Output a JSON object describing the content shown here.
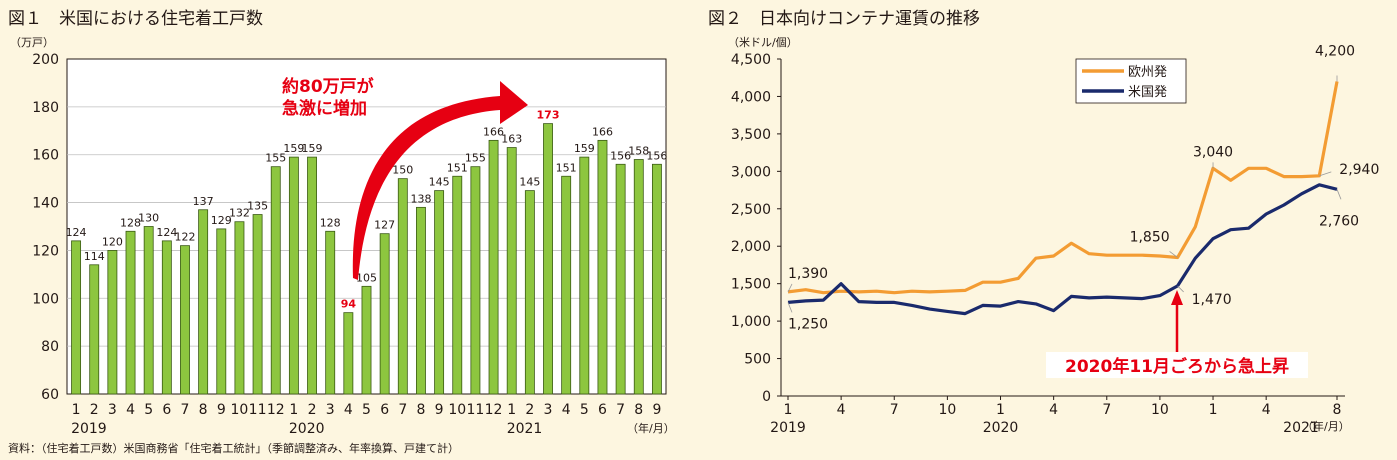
{
  "chart_data": [
    {
      "type": "bar",
      "title": "図１　米国における住宅着工戸数",
      "unit_label": "（万戸）",
      "x_unit_label": "（年/月）",
      "source": "資料：（住宅着工戸数）米国商務省「住宅着工統計」（季節調整済み、年率換算、戸建て計）",
      "ylim": [
        60,
        200
      ],
      "yticks": [
        60,
        80,
        100,
        120,
        140,
        160,
        180,
        200
      ],
      "grid": true,
      "categories": [
        "1",
        "2",
        "3",
        "4",
        "5",
        "6",
        "7",
        "8",
        "9",
        "10",
        "11",
        "12",
        "1",
        "2",
        "3",
        "4",
        "5",
        "6",
        "7",
        "8",
        "9",
        "10",
        "11",
        "12",
        "1",
        "2",
        "3",
        "4",
        "5",
        "6",
        "7",
        "8",
        "9"
      ],
      "values": [
        124,
        114,
        120,
        128,
        130,
        124,
        122,
        137,
        129,
        132,
        135,
        155,
        159,
        159,
        128,
        94,
        105,
        127,
        150,
        138,
        145,
        151,
        155,
        166,
        163,
        145,
        173,
        151,
        159,
        166,
        156,
        158,
        156
      ],
      "year_labels": [
        {
          "label": "2019",
          "index": 0
        },
        {
          "label": "2020",
          "index": 12
        },
        {
          "label": "2021",
          "index": 24
        }
      ],
      "highlight_indices": [
        15,
        26
      ],
      "annotation": {
        "lines": [
          "約80万戸が",
          "急激に増加"
        ],
        "color": "#e60012"
      },
      "bar_color": "#8dc63f",
      "bar_edge_color": "#3a5a14"
    },
    {
      "type": "line",
      "title": "図２　日本向けコンテナ運賃の推移",
      "unit_label": "（米ドル/個）",
      "x_unit_label": "（年/月）",
      "ylim": [
        0,
        4500
      ],
      "yticks": [
        0,
        500,
        1000,
        1500,
        2000,
        2500,
        3000,
        3500,
        4000,
        4500
      ],
      "grid": false,
      "legend_position": "top-center",
      "x_tick_labels": [
        {
          "label": "1",
          "index": 0
        },
        {
          "label": "4",
          "index": 3
        },
        {
          "label": "7",
          "index": 6
        },
        {
          "label": "10",
          "index": 9
        },
        {
          "label": "1",
          "index": 12
        },
        {
          "label": "4",
          "index": 15
        },
        {
          "label": "7",
          "index": 18
        },
        {
          "label": "10",
          "index": 21
        },
        {
          "label": "1",
          "index": 24
        },
        {
          "label": "4",
          "index": 27
        },
        {
          "label": "8",
          "index": 31
        }
      ],
      "year_labels": [
        {
          "label": "2019",
          "index": 0
        },
        {
          "label": "2020",
          "index": 12
        },
        {
          "label": "2021",
          "index": 31
        }
      ],
      "series": [
        {
          "name": "欧州発",
          "color": "#f39c33",
          "values": [
            1390,
            1420,
            1380,
            1400,
            1390,
            1400,
            1380,
            1400,
            1390,
            1400,
            1410,
            1520,
            1520,
            1570,
            1840,
            1870,
            2040,
            1900,
            1880,
            1880,
            1880,
            1870,
            1850,
            2260,
            3040,
            2880,
            3040,
            3040,
            2930,
            2930,
            2940,
            4200
          ]
        },
        {
          "name": "米国発",
          "color": "#1a2a6c",
          "values": [
            1250,
            1270,
            1280,
            1500,
            1260,
            1250,
            1250,
            1210,
            1160,
            1130,
            1100,
            1210,
            1200,
            1260,
            1230,
            1140,
            1330,
            1310,
            1320,
            1310,
            1300,
            1340,
            1470,
            1840,
            2100,
            2220,
            2240,
            2430,
            2550,
            2700,
            2820,
            2760
          ]
        }
      ],
      "value_labels": [
        {
          "text": "1,390",
          "series": 0,
          "index": 0
        },
        {
          "text": "1,250",
          "series": 1,
          "index": 0
        },
        {
          "text": "1,850",
          "series": 0,
          "index": 22
        },
        {
          "text": "1,470",
          "series": 1,
          "index": 22
        },
        {
          "text": "3,040",
          "series": 0,
          "index": 24
        },
        {
          "text": "4,200",
          "series": 0,
          "index": 31
        },
        {
          "text": "2,940",
          "series": 0,
          "index": 30
        },
        {
          "text": "2,760",
          "series": 1,
          "index": 31
        }
      ],
      "annotation": {
        "text": "2020年11月ごろから急上昇",
        "color": "#e60012"
      }
    }
  ]
}
